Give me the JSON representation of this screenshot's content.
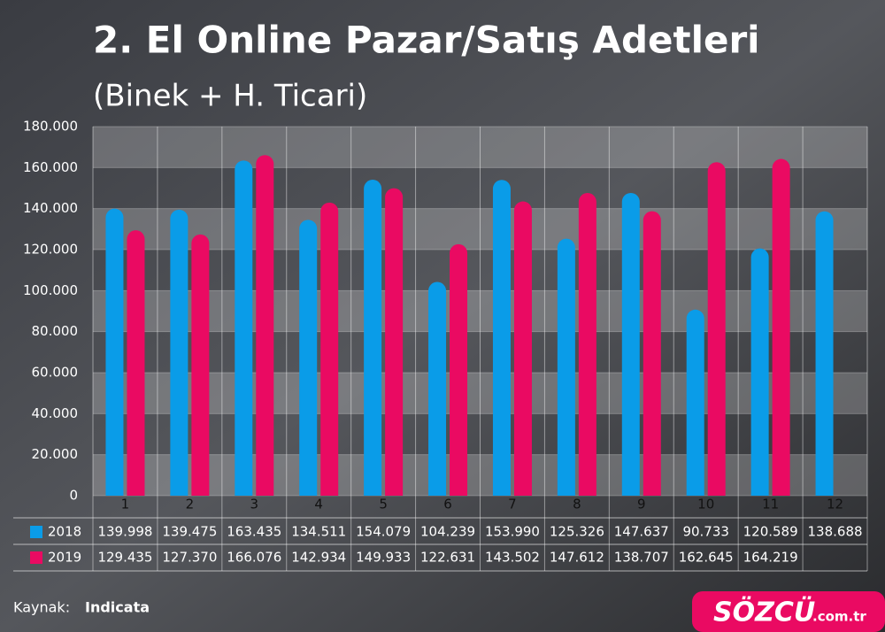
{
  "chart_data": {
    "type": "bar",
    "title": "2. El Online Pazar/Satış Adetleri",
    "subtitle": "(Binek + H. Ticari)",
    "categories": [
      "1",
      "2",
      "3",
      "4",
      "5",
      "6",
      "7",
      "8",
      "9",
      "10",
      "11",
      "12"
    ],
    "series": [
      {
        "name": "2018",
        "color": "#0a9ce8",
        "values": [
          139998,
          139475,
          163435,
          134511,
          154079,
          104239,
          153990,
          125326,
          147637,
          90733,
          120589,
          138688
        ],
        "value_labels": [
          "139.998",
          "139.475",
          "163.435",
          "134.511",
          "154.079",
          "104.239",
          "153.990",
          "125.326",
          "147.637",
          "90.733",
          "120.589",
          "138.688"
        ]
      },
      {
        "name": "2019",
        "color": "#ea0a62",
        "values": [
          129435,
          127370,
          166076,
          142934,
          149933,
          122631,
          143502,
          147612,
          138707,
          162645,
          164219,
          null
        ],
        "value_labels": [
          "129.435",
          "127.370",
          "166.076",
          "142.934",
          "149.933",
          "122.631",
          "143.502",
          "147.612",
          "138.707",
          "162.645",
          "164.219",
          null
        ]
      }
    ],
    "ylim": [
      0,
      180000
    ],
    "yticks": [
      0,
      {
        "value": 20000,
        "label": "20.000"
      },
      {
        "value": 40000,
        "label": "40.000"
      },
      {
        "value": 60000,
        "label": "60.000"
      },
      {
        "value": 80000,
        "label": "80.000"
      },
      {
        "value": 100000,
        "label": "100.000"
      },
      {
        "value": 120000,
        "label": "120.000"
      },
      {
        "value": 140000,
        "label": "140.000"
      },
      {
        "value": 160000,
        "label": "160.000"
      },
      {
        "value": 180000,
        "label": "180.000"
      }
    ],
    "grid": true,
    "source_label": "Kaynak:",
    "source": "Indicata",
    "logo": "SÖZCÜ",
    "logo_suffix": ".com.tr"
  }
}
